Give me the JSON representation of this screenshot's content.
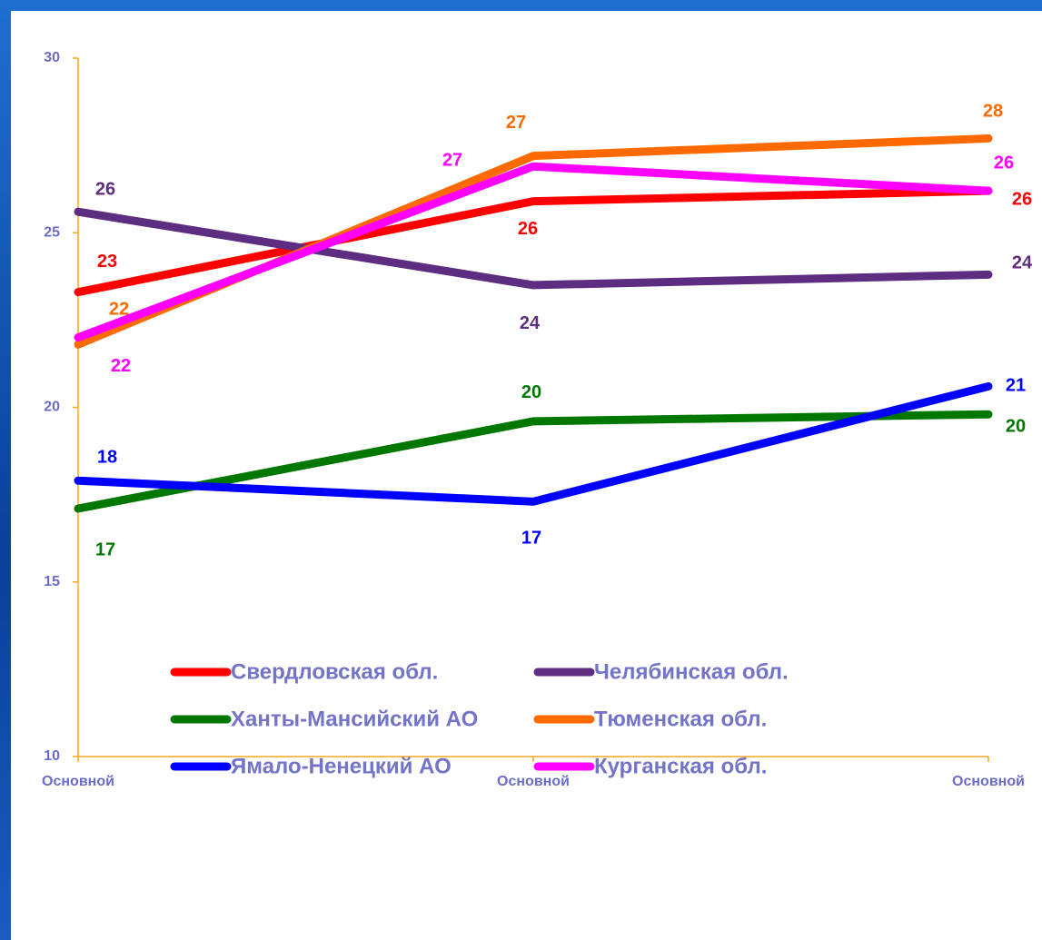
{
  "chart_data": {
    "type": "line",
    "categories": [
      "Основной",
      "Основной",
      "Основной"
    ],
    "ylim": [
      10,
      30
    ],
    "yticks": [
      10,
      15,
      20,
      25,
      30
    ],
    "grid": false,
    "legend": "bottom",
    "series": [
      {
        "name": "Свердловская обл.",
        "color": "#ff0000",
        "values": [
          23.3,
          25.9,
          26.2
        ],
        "value_labels": [
          "23",
          "26",
          "26"
        ]
      },
      {
        "name": "Челябинская обл.",
        "color": "#5c2d80",
        "values": [
          25.6,
          23.5,
          23.8
        ],
        "value_labels": [
          "26",
          "24",
          "24"
        ]
      },
      {
        "name": "Ханты-Мансийский АО",
        "color": "#007800",
        "values": [
          17.1,
          19.6,
          19.8
        ],
        "value_labels": [
          "17",
          "20",
          "20"
        ]
      },
      {
        "name": "Тюменская обл.",
        "color": "#ff6a00",
        "values": [
          21.8,
          27.2,
          27.7
        ],
        "value_labels": [
          "22",
          "27",
          "28"
        ]
      },
      {
        "name": "Ямало-Ненецкий АО",
        "color": "#0000ff",
        "values": [
          17.9,
          17.3,
          20.6
        ],
        "value_labels": [
          "18",
          "17",
          "21"
        ]
      },
      {
        "name": "Курганская обл.",
        "color": "#ff00ff",
        "values": [
          22.0,
          26.9,
          26.2
        ],
        "value_labels": [
          "22",
          "27",
          "26"
        ]
      }
    ]
  }
}
